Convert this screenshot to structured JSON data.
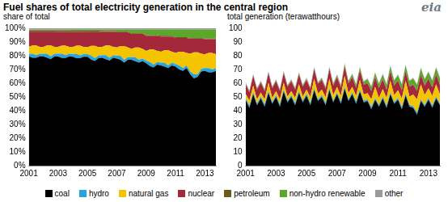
{
  "title": "Fuel shares of total electricity generation in the central region",
  "logo": "eia",
  "chart_data": [
    {
      "type": "area",
      "stacked": true,
      "grid": false,
      "legend": "bottom",
      "subtitle": "share of total",
      "categories": [
        "2001",
        null,
        null,
        null,
        null,
        null,
        null,
        null,
        "2003",
        null,
        null,
        null,
        null,
        null,
        null,
        null,
        "2005",
        null,
        null,
        null,
        null,
        null,
        null,
        null,
        "2007",
        null,
        null,
        null,
        null,
        null,
        null,
        null,
        "2009",
        null,
        null,
        null,
        null,
        null,
        null,
        null,
        "2011",
        null,
        null,
        null,
        null,
        null,
        null,
        null,
        "2013",
        null,
        null,
        null
      ],
      "ylim": [
        0,
        100
      ],
      "yticks": [
        {
          "value": 0,
          "label": "0%"
        },
        {
          "value": 10,
          "label": "10%"
        },
        {
          "value": 20,
          "label": "20%"
        },
        {
          "value": 30,
          "label": "30%"
        },
        {
          "value": 40,
          "label": "40%"
        },
        {
          "value": 50,
          "label": "50%"
        },
        {
          "value": 60,
          "label": "60%"
        },
        {
          "value": 70,
          "label": "70%"
        },
        {
          "value": 80,
          "label": "80%"
        },
        {
          "value": 90,
          "label": "90%"
        },
        {
          "value": 100,
          "label": "100%"
        }
      ],
      "series": [
        {
          "name": "coal",
          "color": "#000000",
          "values": [
            79.5,
            78.5,
            78.5,
            79.5,
            79.5,
            78.5,
            77.5,
            79.5,
            79.4,
            78.4,
            78.4,
            79.4,
            79.3,
            78.3,
            78.3,
            79.3,
            79.2,
            77.2,
            76.2,
            78.2,
            78.5,
            77.5,
            76.5,
            78.5,
            78,
            77,
            75,
            77,
            77,
            76,
            75,
            76,
            74.5,
            72.5,
            71.5,
            73.5,
            73,
            72,
            71,
            73,
            72,
            70,
            69,
            71,
            66.5,
            63.5,
            64.5,
            68.5,
            69,
            68,
            68,
            69
          ]
        },
        {
          "name": "hydro",
          "color": "#2aa3dc",
          "values": [
            2,
            3,
            2,
            2,
            2,
            3,
            2,
            2,
            2,
            3,
            2,
            2,
            2,
            3,
            2,
            2,
            2,
            3,
            2,
            2,
            2,
            3,
            2,
            2,
            2,
            3,
            2,
            2,
            2,
            3,
            2,
            2,
            2,
            3,
            2,
            2,
            2,
            3,
            2,
            2,
            2,
            3,
            2,
            2,
            2,
            3,
            2,
            2,
            2,
            3,
            2,
            2
          ]
        },
        {
          "name": "natural gas",
          "color": "#f5c400",
          "values": [
            5,
            6,
            7,
            5,
            5,
            6,
            8,
            5,
            5,
            6,
            7,
            5,
            5,
            6,
            7,
            5,
            5,
            7,
            9,
            6,
            6,
            7,
            9,
            6,
            6,
            7,
            10,
            7,
            6,
            7,
            9,
            7,
            7,
            9,
            11,
            8,
            8,
            9,
            11,
            8,
            8,
            10,
            12,
            9,
            13,
            16,
            16,
            11,
            10,
            11,
            12,
            10
          ]
        },
        {
          "name": "nuclear",
          "color": "#a3283a",
          "values": [
            11,
            10,
            10,
            11,
            11,
            10,
            10,
            11,
            11,
            10,
            10,
            11,
            11,
            10,
            10,
            11,
            11,
            10,
            10,
            11,
            11,
            10,
            10,
            11,
            11,
            10,
            10,
            11,
            11,
            10,
            10,
            11,
            11,
            10,
            10,
            11,
            11,
            10,
            10,
            11,
            11,
            10,
            10,
            11,
            11,
            10,
            10,
            11,
            11,
            10,
            10,
            11
          ]
        },
        {
          "name": "petroleum",
          "color": "#6b5a1e",
          "values": [
            1,
            1,
            1,
            1,
            1,
            1,
            1,
            1,
            1,
            1,
            1,
            1,
            1,
            1,
            1,
            1,
            1,
            1,
            1,
            1,
            0.5,
            0.5,
            0.5,
            0.5,
            0.5,
            0.5,
            0.5,
            0.5,
            0.5,
            0.5,
            0.5,
            0.5,
            0.5,
            0.5,
            0.5,
            0.5,
            0.5,
            0.5,
            0.5,
            0.5,
            0.5,
            0.5,
            0.5,
            0.5,
            0.5,
            0.5,
            0.5,
            0.5,
            0.5,
            0.5,
            0.5,
            0.5
          ]
        },
        {
          "name": "non-hydro renewable",
          "color": "#5ba829",
          "values": [
            0.5,
            0.5,
            0.5,
            0.5,
            0.5,
            0.5,
            0.5,
            0.5,
            0.6,
            0.6,
            0.6,
            0.6,
            0.7,
            0.7,
            0.7,
            0.7,
            0.8,
            0.8,
            0.8,
            0.8,
            1,
            1,
            1,
            1,
            1.5,
            1.5,
            1.5,
            1.5,
            2.5,
            2.5,
            2.5,
            2.5,
            4,
            4,
            4,
            4,
            4.5,
            4.5,
            4.5,
            4.5,
            5.5,
            5.5,
            5.5,
            5.5,
            6,
            6,
            6,
            6,
            6.5,
            6.5,
            6.5,
            6.5
          ]
        },
        {
          "name": "other",
          "color": "#9a9a9a",
          "values": [
            1,
            1,
            1,
            1,
            1,
            1,
            1,
            1,
            1,
            1,
            1,
            1,
            1,
            1,
            1,
            1,
            1,
            1,
            1,
            1,
            1,
            1,
            1,
            1,
            1,
            1,
            1,
            1,
            1,
            1,
            1,
            1,
            1,
            1,
            1,
            1,
            1,
            1,
            1,
            1,
            1,
            1,
            1,
            1,
            1,
            1,
            1,
            1,
            1,
            1,
            1,
            1
          ]
        }
      ]
    },
    {
      "type": "area",
      "stacked": true,
      "grid": false,
      "subtitle": "total generation (terawatthours)",
      "categories": [
        "2001",
        null,
        null,
        null,
        null,
        null,
        null,
        null,
        "2003",
        null,
        null,
        null,
        null,
        null,
        null,
        null,
        "2005",
        null,
        null,
        null,
        null,
        null,
        null,
        null,
        "2007",
        null,
        null,
        null,
        null,
        null,
        null,
        null,
        "2009",
        null,
        null,
        null,
        null,
        null,
        null,
        null,
        "2011",
        null,
        null,
        null,
        null,
        null,
        null,
        null,
        "2013",
        null,
        null,
        null
      ],
      "ylim": [
        0,
        100
      ],
      "yticks": [
        0,
        10,
        20,
        30,
        40,
        50,
        60,
        70,
        80,
        90,
        100
      ],
      "series": [
        {
          "name": "coal",
          "color": "#000000",
          "values": [
            48,
            42,
            52,
            44,
            49,
            43,
            53,
            45,
            50,
            43,
            54,
            46,
            50,
            44,
            53,
            46,
            51,
            44,
            55,
            47,
            50,
            44,
            55,
            46,
            52,
            45,
            56,
            47,
            52,
            45,
            54,
            46,
            47,
            41,
            48,
            43,
            49,
            42,
            52,
            45,
            48,
            41,
            51,
            43,
            42,
            37,
            47,
            43,
            48,
            42,
            49,
            44
          ]
        },
        {
          "name": "hydro",
          "color": "#2aa3dc",
          "values": [
            1.3,
            1.8,
            1.3,
            1.3,
            1.3,
            1.8,
            1.3,
            1.3,
            1.3,
            1.8,
            1.3,
            1.3,
            1.3,
            1.8,
            1.3,
            1.3,
            1.3,
            1.8,
            1.3,
            1.3,
            1.3,
            1.8,
            1.3,
            1.3,
            1.3,
            1.8,
            1.3,
            1.3,
            1.3,
            1.8,
            1.3,
            1.3,
            1.3,
            1.8,
            1.3,
            1.3,
            1.3,
            1.8,
            1.3,
            1.3,
            1.3,
            1.8,
            1.3,
            1.3,
            1.3,
            1.8,
            1.3,
            1.3,
            1.3,
            1.8,
            1.3,
            1.3
          ]
        },
        {
          "name": "natural gas",
          "color": "#f5c400",
          "values": [
            3,
            3.5,
            5,
            3,
            3,
            3.5,
            6,
            3,
            3,
            3.5,
            5,
            3,
            3,
            3.5,
            5,
            3,
            3,
            4,
            7,
            4,
            4,
            4,
            7,
            4,
            4,
            4,
            8,
            4.5,
            4,
            4,
            7,
            4.5,
            4.5,
            5.5,
            8,
            5,
            5.5,
            5.5,
            8.5,
            5,
            5.5,
            6,
            9.5,
            6,
            8.5,
            9.5,
            11,
            7,
            7,
            7,
            9,
            6.5
          ]
        },
        {
          "name": "nuclear",
          "color": "#a3283a",
          "values": [
            7,
            6,
            7,
            7,
            7,
            6,
            7,
            7,
            7,
            6,
            7,
            7,
            7,
            6,
            7,
            7,
            7,
            6,
            7,
            7,
            7,
            6,
            7,
            7,
            7,
            6,
            7,
            7,
            7,
            6,
            7,
            7,
            7,
            6,
            7,
            7,
            7,
            6,
            7,
            7,
            7,
            6,
            7,
            7,
            7,
            6,
            7,
            7,
            7,
            6,
            7,
            7
          ]
        },
        {
          "name": "petroleum",
          "color": "#6b5a1e",
          "values": [
            0.5,
            0.5,
            0.5,
            0.5,
            0.5,
            0.5,
            0.5,
            0.5,
            0.5,
            0.5,
            0.5,
            0.5,
            0.5,
            0.5,
            0.5,
            0.5,
            0.5,
            0.5,
            0.5,
            0.5,
            0.5,
            0.5,
            0.5,
            0.5,
            0.5,
            0.5,
            0.5,
            0.5,
            0.5,
            0.5,
            0.5,
            0.5,
            0.5,
            0.5,
            0.5,
            0.5,
            0.5,
            0.5,
            0.5,
            0.5,
            0.5,
            0.5,
            0.5,
            0.5,
            0.5,
            0.5,
            0.5,
            0.5,
            0.5,
            0.5,
            0.5,
            0.5
          ]
        },
        {
          "name": "non-hydro renewable",
          "color": "#5ba829",
          "values": [
            0.3,
            0.3,
            0.3,
            0.3,
            0.3,
            0.3,
            0.3,
            0.3,
            0.4,
            0.4,
            0.4,
            0.4,
            0.5,
            0.5,
            0.5,
            0.5,
            0.5,
            0.5,
            0.5,
            0.5,
            0.7,
            0.7,
            0.7,
            0.7,
            1,
            1,
            1,
            1,
            1.6,
            1.6,
            1.6,
            1.6,
            2.6,
            2.6,
            2.6,
            2.6,
            3,
            3,
            3,
            3,
            3.6,
            3.6,
            3.6,
            3.6,
            4,
            4,
            4,
            4,
            4.3,
            4.3,
            4.3,
            4.3
          ]
        },
        {
          "name": "other",
          "color": "#9a9a9a",
          "values": [
            0.6,
            0.6,
            0.6,
            0.6,
            0.6,
            0.6,
            0.6,
            0.6,
            0.6,
            0.6,
            0.6,
            0.6,
            0.6,
            0.6,
            0.6,
            0.6,
            0.6,
            0.6,
            0.6,
            0.6,
            0.6,
            0.6,
            0.6,
            0.6,
            0.6,
            0.6,
            0.6,
            0.6,
            0.6,
            0.6,
            0.6,
            0.6,
            0.6,
            0.6,
            0.6,
            0.6,
            0.6,
            0.6,
            0.6,
            0.6,
            0.6,
            0.6,
            0.6,
            0.6,
            0.6,
            0.6,
            0.6,
            0.6,
            0.6,
            0.6,
            0.6,
            0.6
          ]
        }
      ]
    }
  ]
}
